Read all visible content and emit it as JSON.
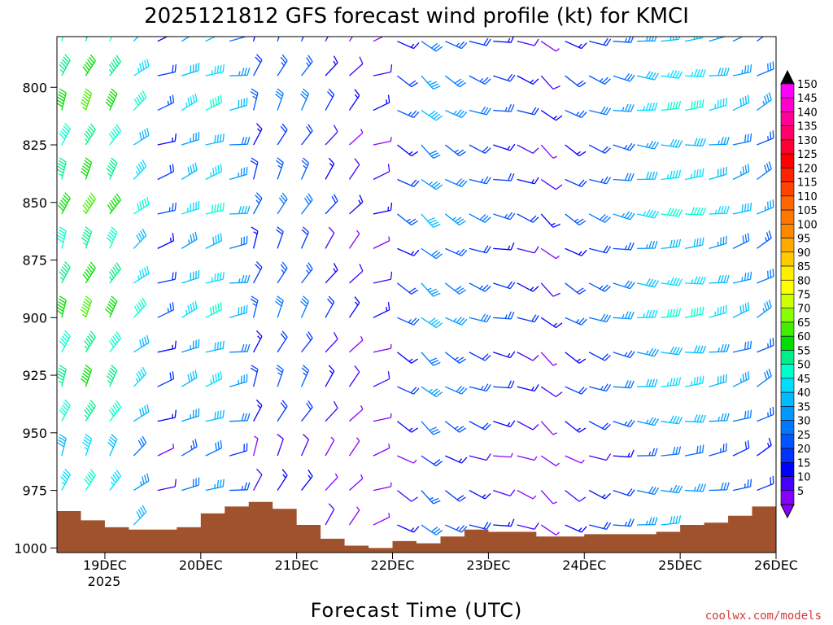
{
  "chart_data": {
    "type": "wind-barb-profile",
    "title": "2025121812 GFS forecast wind profile (kt) for KMCI",
    "xlabel": "Forecast Time (UTC)",
    "ylabel": "",
    "x_ticks": [
      "19DEC",
      "20DEC",
      "21DEC",
      "22DEC",
      "23DEC",
      "24DEC",
      "25DEC",
      "26DEC"
    ],
    "x_year": "2025",
    "y_ticks": [
      800,
      825,
      850,
      875,
      900,
      925,
      950,
      975,
      1000
    ],
    "y_range": [
      778,
      1002
    ],
    "x_range_days": [
      18.5,
      26.0
    ],
    "colorbar": {
      "labels": [
        "150",
        "145",
        "140",
        "135",
        "130",
        "125",
        "120",
        "115",
        "110",
        "105",
        "100",
        "95",
        "90",
        "85",
        "80",
        "75",
        "70",
        "65",
        "60",
        "55",
        "50",
        "45",
        "40",
        "35",
        "30",
        "25",
        "20",
        "15",
        "10",
        "5"
      ],
      "colors": [
        "#ff00ff",
        "#ff00cc",
        "#ff0099",
        "#ff0066",
        "#ff0033",
        "#ff0000",
        "#ff2200",
        "#ff4400",
        "#ff6600",
        "#ff7700",
        "#ff8800",
        "#ffaa00",
        "#ffcc00",
        "#ffee00",
        "#ffff00",
        "#ccff00",
        "#88ff00",
        "#44ee00",
        "#00dd00",
        "#00ee88",
        "#00ffcc",
        "#00ddff",
        "#00bbff",
        "#0099ff",
        "#0077ff",
        "#0055ff",
        "#0033ff",
        "#0000ff",
        "#4400ff",
        "#8800ff"
      ]
    },
    "surface_pressure": [
      {
        "day": 18.5,
        "p": 984
      },
      {
        "day": 18.75,
        "p": 988
      },
      {
        "day": 19.0,
        "p": 991
      },
      {
        "day": 19.25,
        "p": 992
      },
      {
        "day": 19.5,
        "p": 992
      },
      {
        "day": 19.75,
        "p": 991
      },
      {
        "day": 20.0,
        "p": 985
      },
      {
        "day": 20.25,
        "p": 982
      },
      {
        "day": 20.5,
        "p": 980
      },
      {
        "day": 20.75,
        "p": 983
      },
      {
        "day": 21.0,
        "p": 990
      },
      {
        "day": 21.25,
        "p": 996
      },
      {
        "day": 21.5,
        "p": 999
      },
      {
        "day": 21.75,
        "p": 1000
      },
      {
        "day": 22.0,
        "p": 997
      },
      {
        "day": 22.25,
        "p": 998
      },
      {
        "day": 22.5,
        "p": 995
      },
      {
        "day": 22.75,
        "p": 992
      },
      {
        "day": 23.0,
        "p": 993
      },
      {
        "day": 23.25,
        "p": 993
      },
      {
        "day": 23.5,
        "p": 995
      },
      {
        "day": 23.75,
        "p": 995
      },
      {
        "day": 24.0,
        "p": 994
      },
      {
        "day": 24.25,
        "p": 994
      },
      {
        "day": 24.5,
        "p": 994
      },
      {
        "day": 24.75,
        "p": 993
      },
      {
        "day": 25.0,
        "p": 990
      },
      {
        "day": 25.25,
        "p": 989
      },
      {
        "day": 25.5,
        "p": 986
      },
      {
        "day": 25.75,
        "p": 982
      },
      {
        "day": 26.0,
        "p": 984
      }
    ],
    "wind_columns": [
      {
        "day": 18.55,
        "speed": 55,
        "dir": 200
      },
      {
        "day": 18.8,
        "speed": 60,
        "dir": 205
      },
      {
        "day": 19.05,
        "speed": 55,
        "dir": 210
      },
      {
        "day": 19.3,
        "speed": 45,
        "dir": 230
      },
      {
        "day": 19.55,
        "speed": 20,
        "dir": 250
      },
      {
        "day": 19.8,
        "speed": 40,
        "dir": 245
      },
      {
        "day": 20.05,
        "speed": 45,
        "dir": 250
      },
      {
        "day": 20.3,
        "speed": 35,
        "dir": 260
      },
      {
        "day": 20.55,
        "speed": 20,
        "dir": 200
      },
      {
        "day": 20.8,
        "speed": 25,
        "dir": 205
      },
      {
        "day": 21.05,
        "speed": 25,
        "dir": 210
      },
      {
        "day": 21.3,
        "speed": 15,
        "dir": 215
      },
      {
        "day": 21.55,
        "speed": 10,
        "dir": 220
      },
      {
        "day": 21.8,
        "speed": 10,
        "dir": 250
      },
      {
        "day": 22.05,
        "speed": 20,
        "dir": 300
      },
      {
        "day": 22.3,
        "speed": 35,
        "dir": 310
      },
      {
        "day": 22.55,
        "speed": 30,
        "dir": 300
      },
      {
        "day": 22.8,
        "speed": 25,
        "dir": 290
      },
      {
        "day": 23.05,
        "speed": 20,
        "dir": 280
      },
      {
        "day": 23.3,
        "speed": 15,
        "dir": 290
      },
      {
        "day": 23.55,
        "speed": 10,
        "dir": 310
      },
      {
        "day": 23.8,
        "speed": 20,
        "dir": 300
      },
      {
        "day": 24.05,
        "speed": 25,
        "dir": 290
      },
      {
        "day": 24.3,
        "speed": 30,
        "dir": 280
      },
      {
        "day": 24.55,
        "speed": 40,
        "dir": 275
      },
      {
        "day": 24.8,
        "speed": 45,
        "dir": 270
      },
      {
        "day": 25.05,
        "speed": 45,
        "dir": 265
      },
      {
        "day": 25.3,
        "speed": 40,
        "dir": 260
      },
      {
        "day": 25.55,
        "speed": 35,
        "dir": 250
      },
      {
        "day": 25.8,
        "speed": 30,
        "dir": 240
      }
    ],
    "wind_levels": [
      780,
      795,
      810,
      825,
      840,
      855,
      870,
      885,
      900,
      915,
      930,
      945,
      960,
      975,
      990
    ]
  },
  "credit": "coolwx.com/models"
}
